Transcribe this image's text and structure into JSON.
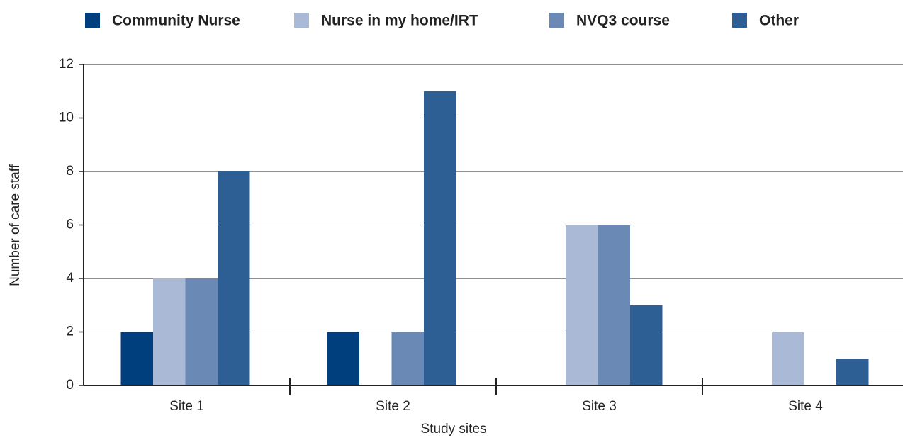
{
  "chart_data": {
    "type": "bar",
    "x_label": "Study sites",
    "y_label": "Number of care staff",
    "categories": [
      "Site 1",
      "Site 2",
      "Site 3",
      "Site 4"
    ],
    "series": [
      {
        "name": "Community Nurse",
        "color": "#003f7d",
        "values": [
          2,
          2,
          0,
          0
        ]
      },
      {
        "name": "Nurse in my home/IRT",
        "color": "#a9b9d6",
        "values": [
          4,
          0,
          6,
          2
        ]
      },
      {
        "name": "NVQ3 course",
        "color": "#6a8ab5",
        "values": [
          4,
          2,
          6,
          0
        ]
      },
      {
        "name": "Other",
        "color": "#2e5f94",
        "values": [
          8,
          11,
          3,
          1
        ]
      }
    ],
    "ylim": [
      0,
      12
    ],
    "yticks": [
      0,
      2,
      4,
      6,
      8,
      10,
      12
    ],
    "grid": true,
    "legend": "top"
  }
}
